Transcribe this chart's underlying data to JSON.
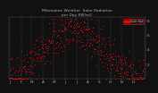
{
  "title": "Milwaukee Weather  Solar Radiation\nper Day KW/m2",
  "background": "#111111",
  "plot_bg": "#111111",
  "fig_bg": "#111111",
  "red_color": "#ff0000",
  "black_color": "#333333",
  "grid_color": "#555555",
  "text_color": "#aaaaaa",
  "y_min": 0,
  "y_max": 8.5,
  "month_ticks": [
    0,
    31,
    59,
    90,
    120,
    151,
    181,
    212,
    243,
    273,
    304,
    334,
    365
  ],
  "month_labels": [
    "J",
    "F",
    "M",
    "A",
    "M",
    "J",
    "J",
    "A",
    "S",
    "O",
    "N",
    "D"
  ],
  "seed": 42
}
